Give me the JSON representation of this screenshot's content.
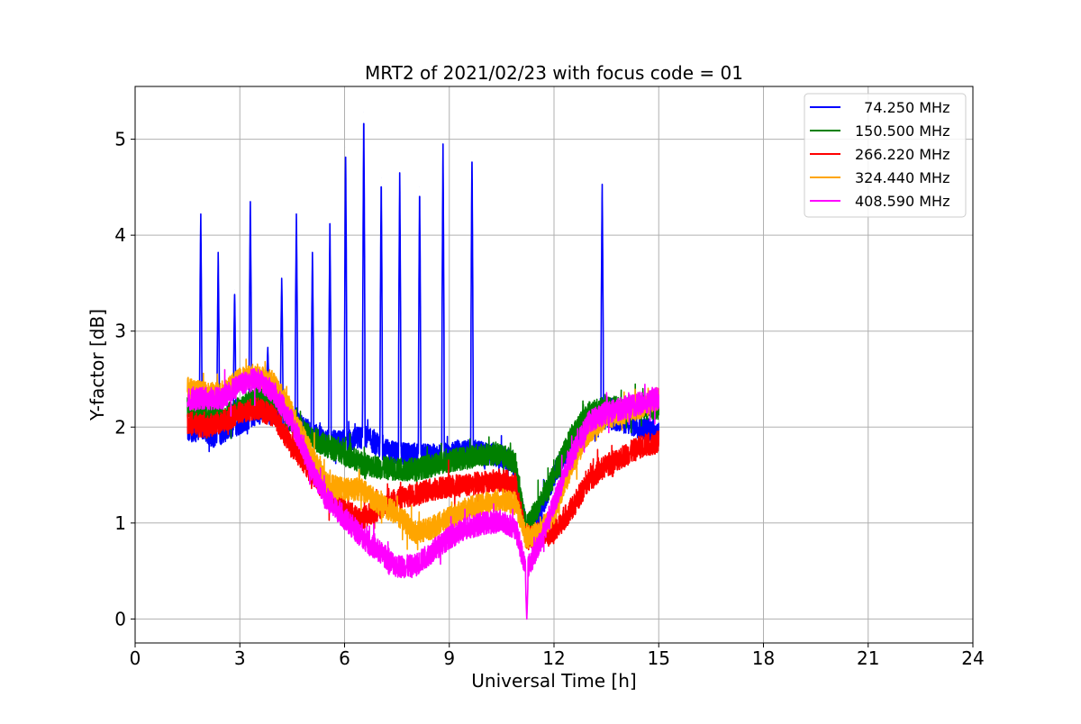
{
  "chart_data": {
    "type": "line",
    "title": "MRT2 of 2021/02/23 with focus code = 01",
    "xlabel": "Universal Time [h]",
    "ylabel": "Y-factor [dB]",
    "xlim": [
      0,
      24
    ],
    "ylim": [
      -0.25,
      5.55
    ],
    "xticks": [
      0,
      3,
      6,
      9,
      12,
      15,
      18,
      21,
      24
    ],
    "xtick_labels": [
      "0",
      "3",
      "6",
      "9",
      "12",
      "15",
      "18",
      "21",
      "24"
    ],
    "yticks": [
      0,
      1,
      2,
      3,
      4,
      5
    ],
    "ytick_labels": [
      "0",
      "1",
      "2",
      "3",
      "4",
      "5"
    ],
    "grid": true,
    "legend_position": "top-right",
    "series": [
      {
        "name": "  74.250 MHz",
        "color": "#0000ff",
        "x": [
          1.5,
          1.9,
          2.2,
          2.8,
          3.5,
          4.2,
          4.6,
          5.0,
          5.5,
          6.0,
          6.6,
          7.2,
          7.8,
          8.4,
          9.0,
          9.6,
          10.2,
          10.8,
          11.2,
          11.6,
          12.0,
          12.5,
          13.0,
          13.5,
          14.0,
          14.5,
          15.0
        ],
        "y": [
          1.95,
          2.0,
          1.9,
          2.0,
          2.15,
          2.15,
          2.05,
          1.95,
          1.85,
          1.85,
          1.9,
          1.75,
          1.72,
          1.7,
          1.72,
          1.75,
          1.72,
          1.65,
          0.95,
          1.1,
          1.5,
          1.85,
          2.05,
          2.1,
          2.05,
          2.0,
          1.95
        ],
        "spikes": [
          {
            "x": 1.88,
            "y": 4.22
          },
          {
            "x": 2.38,
            "y": 3.82
          },
          {
            "x": 2.85,
            "y": 3.43
          },
          {
            "x": 3.3,
            "y": 4.35
          },
          {
            "x": 3.8,
            "y": 2.83
          },
          {
            "x": 4.2,
            "y": 3.55
          },
          {
            "x": 4.62,
            "y": 4.22
          },
          {
            "x": 5.08,
            "y": 3.82
          },
          {
            "x": 5.58,
            "y": 4.12
          },
          {
            "x": 6.03,
            "y": 4.92
          },
          {
            "x": 6.55,
            "y": 5.28
          },
          {
            "x": 7.05,
            "y": 4.6
          },
          {
            "x": 7.58,
            "y": 4.65
          },
          {
            "x": 8.15,
            "y": 4.5
          },
          {
            "x": 8.82,
            "y": 4.95
          },
          {
            "x": 9.65,
            "y": 4.87
          },
          {
            "x": 13.38,
            "y": 4.53
          }
        ]
      },
      {
        "name": "150.500 MHz",
        "color": "#008000",
        "x": [
          1.5,
          2.0,
          2.5,
          3.0,
          3.5,
          4.0,
          4.5,
          5.0,
          5.5,
          6.0,
          6.5,
          7.0,
          7.5,
          8.0,
          8.5,
          9.0,
          9.5,
          10.0,
          10.5,
          10.9,
          11.2,
          11.6,
          12.0,
          12.5,
          13.0,
          13.5,
          14.0,
          14.5,
          15.0
        ],
        "y": [
          2.2,
          2.15,
          2.1,
          2.2,
          2.35,
          2.3,
          2.05,
          1.9,
          1.8,
          1.72,
          1.62,
          1.58,
          1.56,
          1.56,
          1.6,
          1.65,
          1.68,
          1.72,
          1.72,
          1.62,
          0.95,
          1.2,
          1.5,
          1.9,
          2.15,
          2.2,
          2.2,
          2.2,
          2.2
        ]
      },
      {
        "name": "266.220 MHz",
        "color": "#ff0000",
        "x": [
          1.5,
          2.0,
          2.5,
          3.0,
          3.5,
          4.0,
          4.5,
          5.0,
          5.5,
          6.0,
          6.5,
          7.0,
          7.5,
          8.0,
          8.5,
          9.0,
          9.5,
          10.0,
          10.5,
          10.9,
          11.2,
          11.6,
          12.0,
          12.3,
          12.6,
          13.0,
          13.5,
          14.0,
          14.5,
          15.0
        ],
        "y": [
          2.05,
          2.0,
          2.05,
          2.15,
          2.2,
          2.1,
          1.8,
          1.55,
          1.3,
          1.12,
          1.05,
          1.15,
          1.25,
          1.3,
          1.35,
          1.38,
          1.4,
          1.42,
          1.45,
          1.4,
          0.82,
          0.9,
          0.9,
          1.05,
          1.2,
          1.45,
          1.6,
          1.7,
          1.8,
          1.85
        ]
      },
      {
        "name": "324.440 MHz",
        "color": "#ffa500",
        "x": [
          1.5,
          2.0,
          2.5,
          3.0,
          3.5,
          4.0,
          4.5,
          5.0,
          5.5,
          6.0,
          6.5,
          7.0,
          7.5,
          8.0,
          8.5,
          9.0,
          9.5,
          10.0,
          10.5,
          10.9,
          11.2,
          11.6,
          12.0,
          12.5,
          13.0,
          13.5,
          14.0,
          14.5,
          15.0
        ],
        "y": [
          2.4,
          2.35,
          2.35,
          2.5,
          2.55,
          2.45,
          2.15,
          1.75,
          1.4,
          1.35,
          1.35,
          1.2,
          1.1,
          0.9,
          0.95,
          1.05,
          1.15,
          1.2,
          1.25,
          1.2,
          0.85,
          0.9,
          1.1,
          1.6,
          1.95,
          2.1,
          2.15,
          2.2,
          2.3
        ]
      },
      {
        "name": "408.590 MHz",
        "color": "#ff00ff",
        "x": [
          1.5,
          2.0,
          2.5,
          3.0,
          3.5,
          4.0,
          4.5,
          5.0,
          5.5,
          6.0,
          6.5,
          7.0,
          7.5,
          8.0,
          8.5,
          9.0,
          9.5,
          10.0,
          10.5,
          10.9,
          11.2,
          11.6,
          12.0,
          12.5,
          13.0,
          13.5,
          14.0,
          14.5,
          15.0
        ],
        "y": [
          2.3,
          2.3,
          2.3,
          2.45,
          2.5,
          2.35,
          2.05,
          1.6,
          1.25,
          1.05,
          0.85,
          0.7,
          0.55,
          0.55,
          0.7,
          0.85,
          0.95,
          1.0,
          1.02,
          0.95,
          0.5,
          0.8,
          1.2,
          1.7,
          2.05,
          2.15,
          2.2,
          2.25,
          2.3
        ],
        "spikes": [
          {
            "x": 11.22,
            "y": 0.0
          }
        ]
      }
    ]
  }
}
